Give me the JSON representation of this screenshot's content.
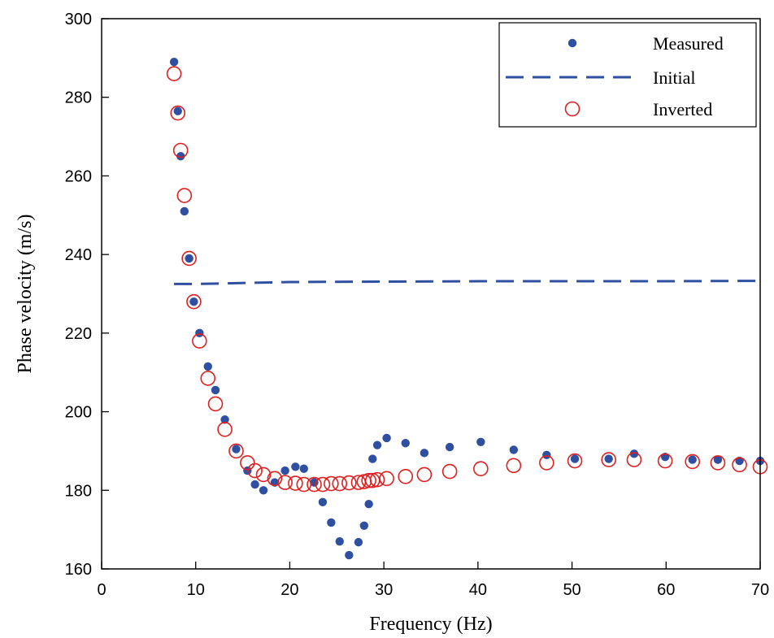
{
  "chart_data": {
    "type": "scatter",
    "xlabel": "Frequency (Hz)",
    "ylabel": "Phase velocity (m/s)",
    "xlim": [
      0,
      70
    ],
    "ylim": [
      160,
      300
    ],
    "xticks": [
      0,
      10,
      20,
      30,
      40,
      50,
      60,
      70
    ],
    "yticks": [
      160,
      180,
      200,
      220,
      240,
      260,
      280,
      300
    ],
    "grid": false,
    "legend_position": "top-right",
    "colors": {
      "measured": "#2f4fa0",
      "initial": "#2f4fa0",
      "inverted": "#e02020"
    },
    "series": [
      {
        "name": "Measured",
        "style": "filled-dot",
        "x": [
          7.7,
          8.1,
          8.4,
          8.8,
          9.3,
          9.8,
          10.4,
          11.3,
          12.1,
          13.1,
          14.3,
          15.5,
          16.3,
          17.2,
          18.4,
          19.5,
          20.6,
          21.5,
          22.6,
          23.5,
          24.4,
          25.3,
          26.3,
          27.3,
          27.9,
          28.4,
          28.8,
          29.3,
          30.3,
          32.3,
          34.3,
          37.0,
          40.3,
          43.8,
          47.3,
          50.3,
          53.9,
          56.6,
          59.9,
          62.8,
          65.5,
          67.8,
          70.0
        ],
        "y": [
          289.0,
          276.5,
          265.0,
          251.0,
          239.0,
          228.0,
          220.0,
          211.5,
          205.5,
          198.0,
          190.5,
          185.0,
          181.5,
          180.0,
          182.0,
          185.0,
          186.0,
          185.5,
          182.0,
          177.0,
          171.8,
          167.0,
          163.5,
          166.8,
          171.0,
          176.5,
          188.0,
          191.5,
          193.3,
          192.0,
          189.5,
          191.0,
          192.3,
          190.3,
          189.0,
          188.0,
          188.0,
          189.3,
          188.5,
          187.8,
          187.8,
          187.5,
          187.5
        ]
      },
      {
        "name": "Initial",
        "style": "dashed-line",
        "x": [
          7.7,
          10,
          20,
          30,
          40,
          50,
          60,
          70
        ],
        "y": [
          232.5,
          232.5,
          233.0,
          233.1,
          233.2,
          233.2,
          233.2,
          233.3
        ]
      },
      {
        "name": "Inverted",
        "style": "open-circle",
        "x": [
          7.7,
          8.1,
          8.4,
          8.8,
          9.3,
          9.8,
          10.4,
          11.3,
          12.1,
          13.1,
          14.3,
          15.5,
          16.3,
          17.2,
          18.4,
          19.5,
          20.6,
          21.5,
          22.6,
          23.5,
          24.4,
          25.3,
          26.3,
          27.3,
          27.9,
          28.4,
          28.8,
          29.3,
          30.3,
          32.3,
          34.3,
          37.0,
          40.3,
          43.8,
          47.3,
          50.3,
          53.9,
          56.6,
          59.9,
          62.8,
          65.5,
          67.8,
          70.0
        ],
        "y": [
          286.0,
          276.0,
          266.5,
          255.0,
          239.0,
          228.0,
          218.0,
          208.5,
          202.0,
          195.5,
          190.0,
          187.0,
          185.0,
          184.0,
          183.0,
          182.0,
          181.8,
          181.5,
          181.5,
          181.5,
          181.7,
          181.7,
          181.9,
          182.0,
          182.2,
          182.5,
          182.5,
          182.7,
          183.0,
          183.5,
          184.0,
          184.8,
          185.5,
          186.3,
          187.0,
          187.5,
          187.8,
          187.8,
          187.5,
          187.3,
          187.0,
          186.5,
          186.0
        ]
      }
    ]
  }
}
